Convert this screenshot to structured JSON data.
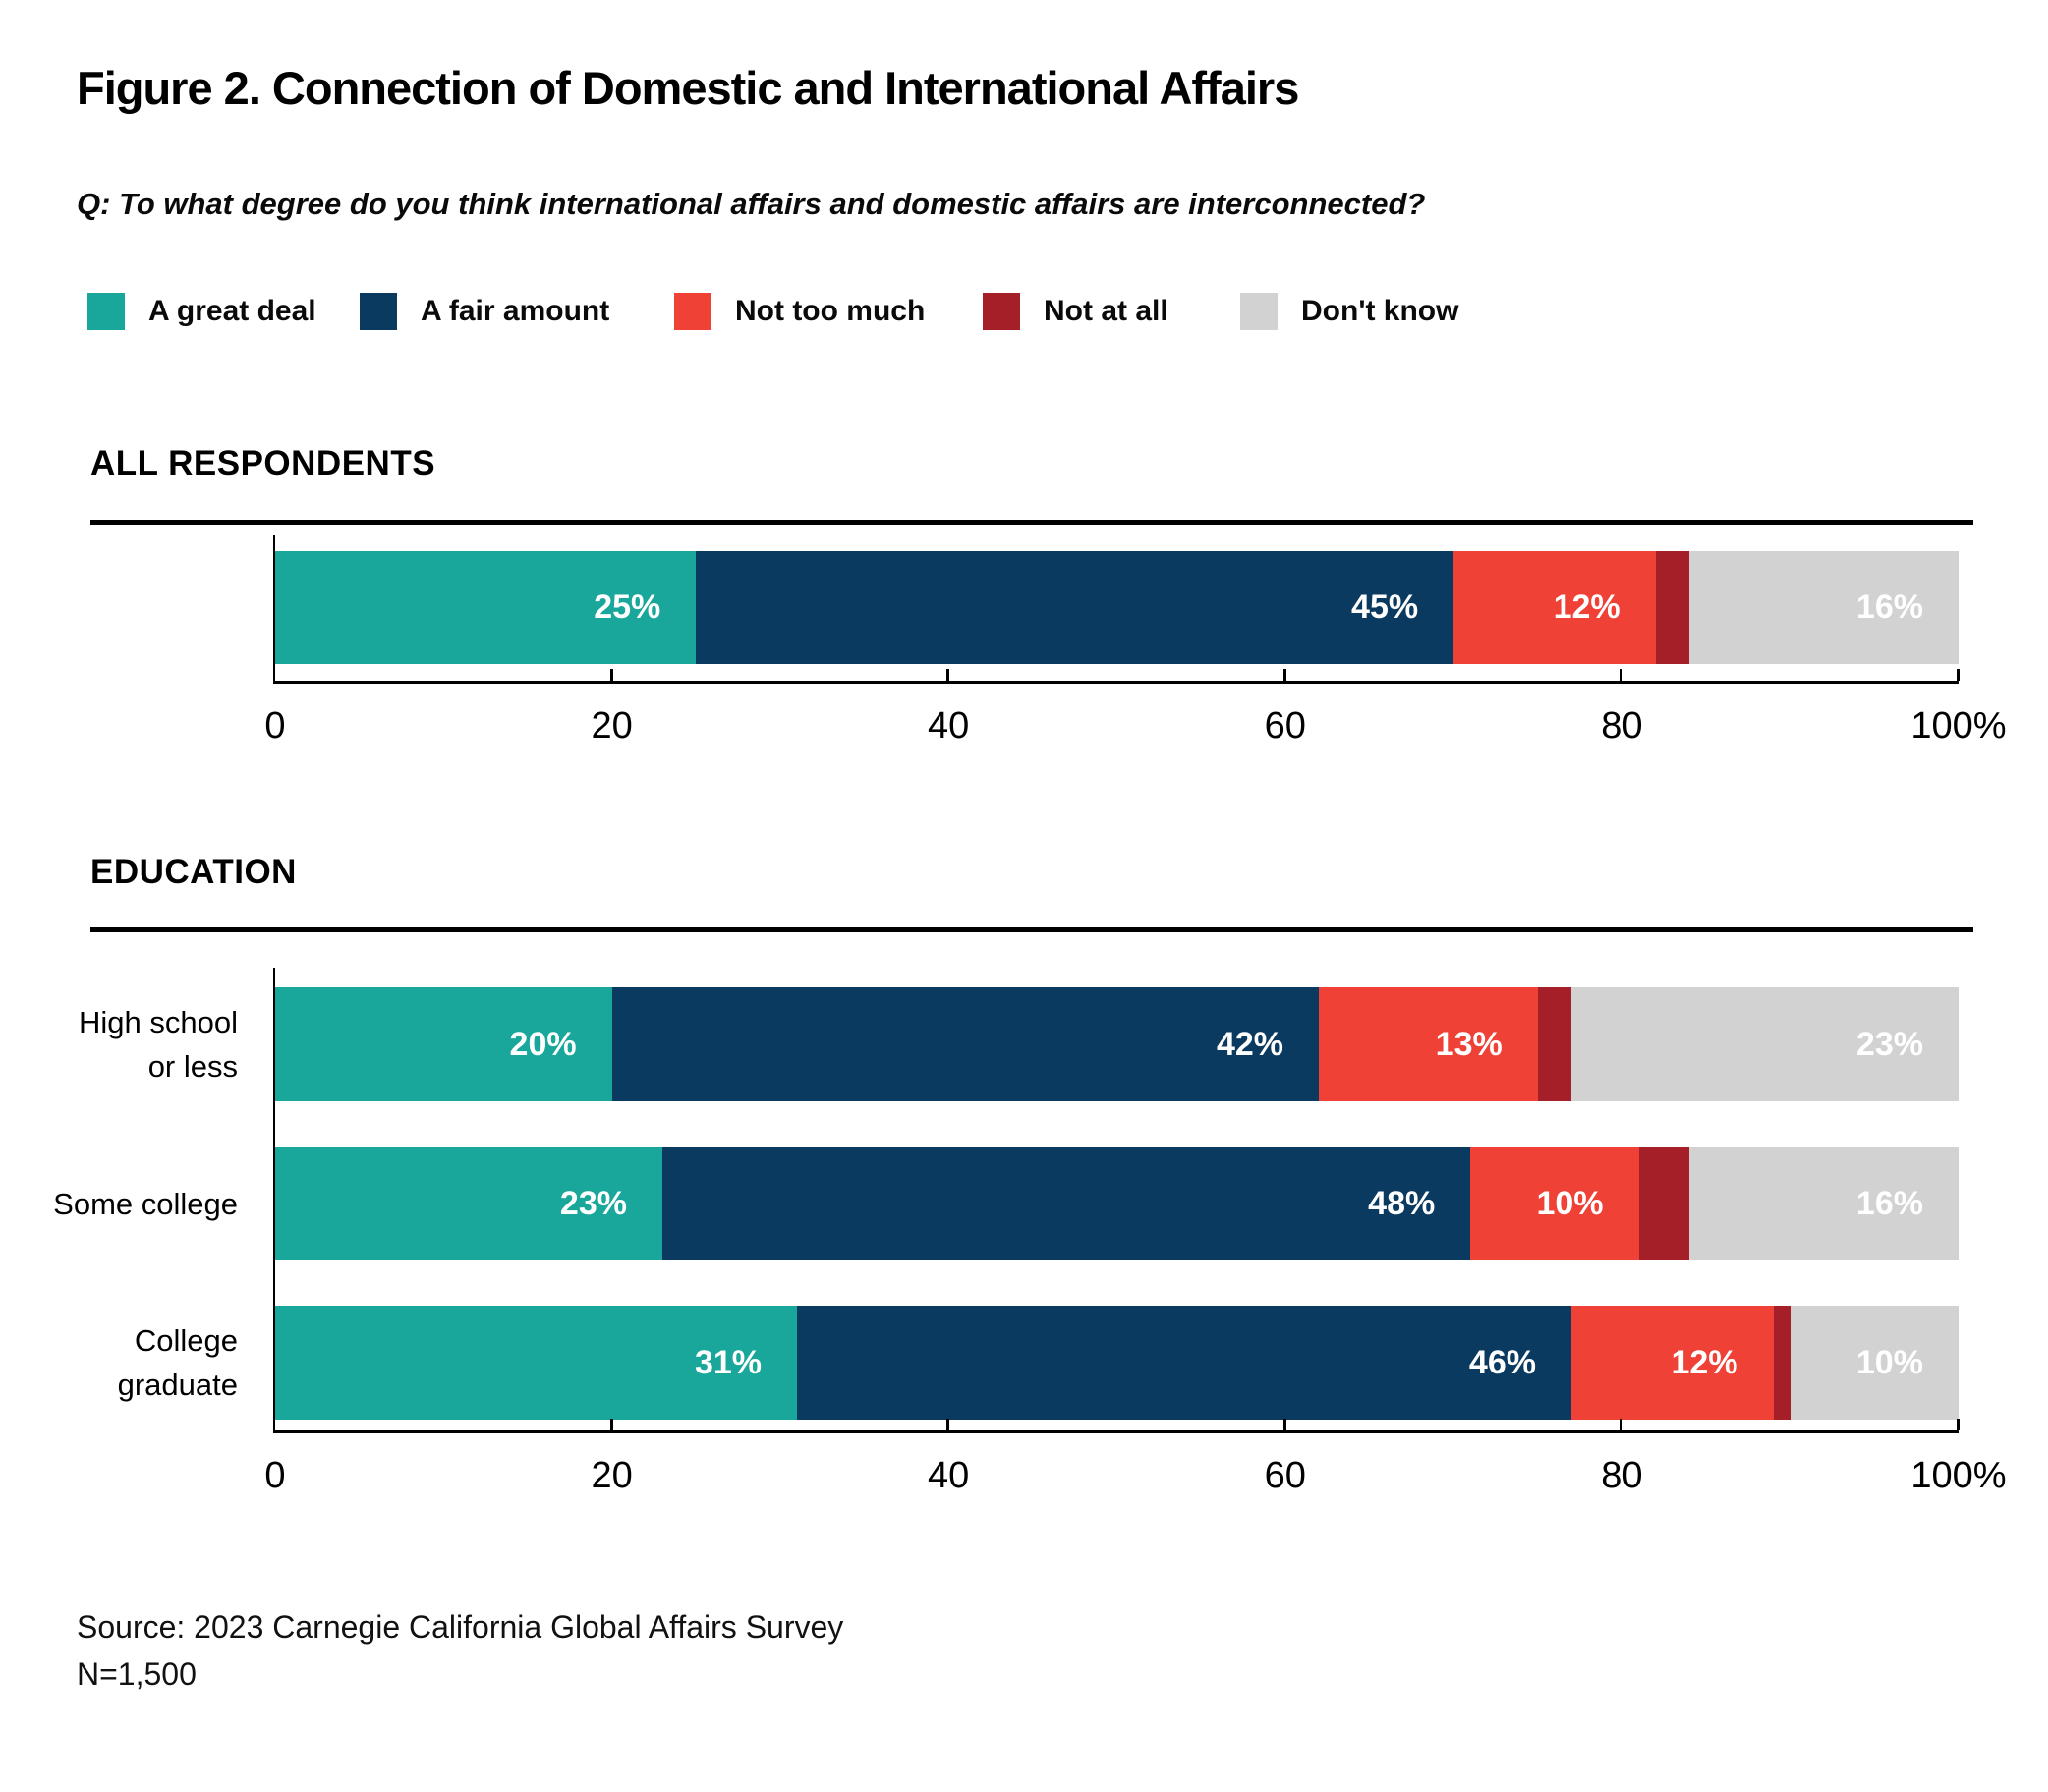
{
  "title": "Figure 2. Connection of Domestic and International Affairs",
  "question": "Q: To what degree do you think international affairs and domestic affairs are interconnected?",
  "legend": [
    {
      "label": "A great deal",
      "color": "#19a79b"
    },
    {
      "label": "A fair amount",
      "color": "#0b3a60"
    },
    {
      "label": "Not too much",
      "color": "#ef4136"
    },
    {
      "label": "Not at all",
      "color": "#a51f28"
    },
    {
      "label": "Don't know",
      "color": "#d2d2d3"
    }
  ],
  "colors": {
    "a_great_deal": "#19a79b",
    "a_fair_amount": "#0b3a60",
    "not_too_much": "#ef4136",
    "not_at_all": "#a51f28",
    "dont_know": "#d2d2d3",
    "axis": "#000000",
    "label_text": "#ffffff"
  },
  "chart_data": [
    {
      "type": "bar",
      "orientation": "horizontal",
      "stacked": true,
      "section_header": "ALL RESPONDENTS",
      "categories": [
        "All respondents"
      ],
      "category_lines": [
        []
      ],
      "series": [
        {
          "name": "A great deal",
          "color": "#19a79b",
          "values": [
            25
          ]
        },
        {
          "name": "A fair amount",
          "color": "#0b3a60",
          "values": [
            45
          ]
        },
        {
          "name": "Not too much",
          "color": "#ef4136",
          "values": [
            12
          ]
        },
        {
          "name": "Not at all",
          "color": "#a51f28",
          "values": [
            2
          ]
        },
        {
          "name": "Don't know",
          "color": "#d2d2d3",
          "values": [
            16
          ]
        }
      ],
      "xlim": [
        0,
        100
      ],
      "x_ticks": [
        "0",
        "20",
        "40",
        "60",
        "80",
        "100%"
      ],
      "label_suffix": "%",
      "min_value_labeled": 10,
      "legend_position": "top",
      "grid": false
    },
    {
      "type": "bar",
      "orientation": "horizontal",
      "stacked": true,
      "section_header": "EDUCATION",
      "categories": [
        "High school or less",
        "Some college",
        "College graduate"
      ],
      "category_lines": [
        [
          "High school",
          "or less"
        ],
        [
          "Some college"
        ],
        [
          "College",
          "graduate"
        ]
      ],
      "series": [
        {
          "name": "A great deal",
          "color": "#19a79b",
          "values": [
            20,
            23,
            31
          ]
        },
        {
          "name": "A fair amount",
          "color": "#0b3a60",
          "values": [
            42,
            48,
            46
          ]
        },
        {
          "name": "Not too much",
          "color": "#ef4136",
          "values": [
            13,
            10,
            12
          ]
        },
        {
          "name": "Not at all",
          "color": "#a51f28",
          "values": [
            2,
            3,
            1
          ]
        },
        {
          "name": "Don't know",
          "color": "#d2d2d3",
          "values": [
            23,
            16,
            10
          ]
        }
      ],
      "xlim": [
        0,
        100
      ],
      "x_ticks": [
        "0",
        "20",
        "40",
        "60",
        "80",
        "100%"
      ],
      "label_suffix": "%",
      "min_value_labeled": 10,
      "legend_position": "top",
      "grid": false
    }
  ],
  "source": {
    "line1": "Source: 2023 Carnegie California Global Affairs Survey",
    "line2": "N=1,500"
  }
}
